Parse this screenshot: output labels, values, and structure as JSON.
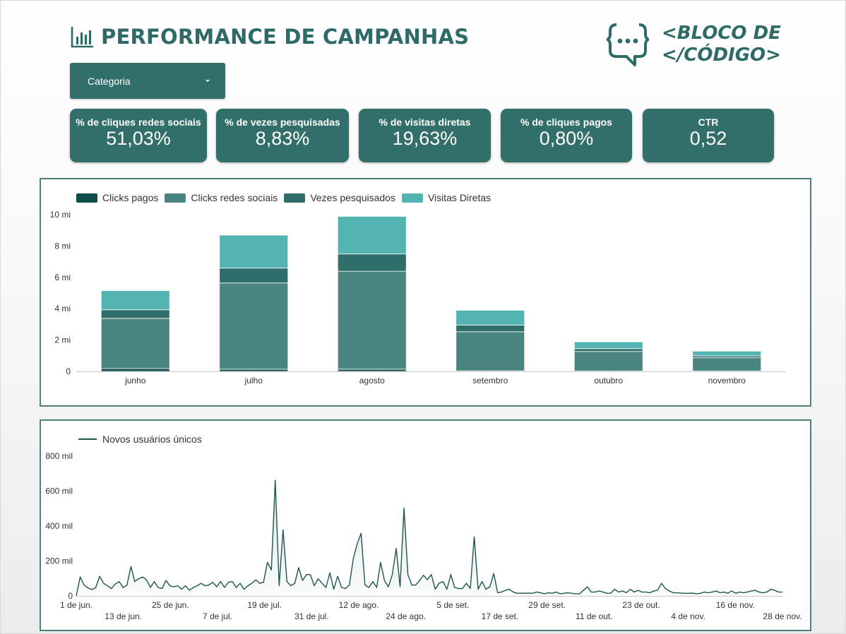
{
  "header": {
    "title": "PERFORMANCE DE CAMPANHAS",
    "icon": "bar-chart-icon",
    "logo_line1": "<BLOCO DE",
    "logo_line2": "</CÓDIGO>",
    "logo_icon": "chat-bubble-icon"
  },
  "filter": {
    "label": "Categoria",
    "icon": "caret-down-icon"
  },
  "kpis": [
    {
      "label": "% de cliques redes sociais",
      "value": "51,03%"
    },
    {
      "label": "% de vezes pesquisadas",
      "value": "8,83%"
    },
    {
      "label": "% de visitas diretas",
      "value": "19,63%"
    },
    {
      "label": "% de cliques pagos",
      "value": "0,80%"
    },
    {
      "label": "CTR",
      "value": "0,52"
    }
  ],
  "colors": {
    "primary": "#336f6a",
    "clicks_pagos": "#0f4e4a",
    "clicks_redes": "#4a8480",
    "vezes_pesquisados": "#2f6e6a",
    "visitas_diretas": "#53b4b1",
    "line": "#1e5550"
  },
  "chart_data": [
    {
      "type": "bar",
      "stacked": true,
      "categories": [
        "junho",
        "julho",
        "agosto",
        "setembro",
        "outubro",
        "novembro"
      ],
      "series": [
        {
          "name": "Clicks pagos",
          "values": [
            0.18,
            0.14,
            0.14,
            0.03,
            0.02,
            0.02
          ]
        },
        {
          "name": "Clicks redes sociais",
          "values": [
            3.2,
            5.5,
            6.25,
            2.5,
            1.25,
            0.85
          ]
        },
        {
          "name": "Vezes pesquisados",
          "values": [
            0.55,
            0.95,
            1.1,
            0.42,
            0.18,
            0.12
          ]
        },
        {
          "name": "Visitas Diretas",
          "values": [
            1.22,
            2.1,
            2.4,
            0.95,
            0.43,
            0.3
          ]
        }
      ],
      "yticks": [
        "0",
        "2 mi",
        "4 mi",
        "6 mi",
        "8 mi",
        "10 mi"
      ],
      "ylim": [
        0,
        10
      ],
      "legend": "top-left",
      "grid": false
    },
    {
      "type": "area",
      "series": [
        {
          "name": "Novos usuários únicos",
          "values": [
            0,
            108,
            62,
            45,
            36,
            48,
            112,
            72,
            58,
            42,
            68,
            82,
            48,
            62,
            168,
            82,
            98,
            108,
            92,
            48,
            82,
            48,
            42,
            88,
            58,
            52,
            58,
            38,
            58,
            32,
            48,
            58,
            72,
            58,
            62,
            78,
            52,
            82,
            48,
            78,
            82,
            48,
            72,
            38,
            58,
            72,
            92,
            72,
            78,
            192,
            148,
            662,
            58,
            378,
            82,
            58,
            72,
            162,
            88,
            122,
            122,
            58,
            98,
            72,
            48,
            132,
            38,
            112,
            48,
            42,
            62,
            212,
            298,
            358,
            62,
            48,
            82,
            48,
            192,
            88,
            52,
            122,
            272,
            52,
            502,
            122,
            62,
            62,
            88,
            118,
            92,
            122,
            38,
            72,
            82,
            38,
            122,
            48,
            42,
            42,
            72,
            42,
            338,
            38,
            82,
            38,
            52,
            128,
            18,
            22,
            32,
            38,
            22,
            15,
            16,
            15,
            16,
            15,
            22,
            18,
            12,
            18,
            15,
            22,
            12,
            15,
            18,
            15,
            12,
            12,
            32,
            52,
            22,
            22,
            28,
            22,
            15,
            15,
            38,
            22,
            28,
            18,
            38,
            22,
            32,
            22,
            22,
            18,
            28,
            32,
            72,
            42,
            28,
            18,
            18,
            16,
            15,
            15,
            16,
            12,
            15,
            22,
            18,
            22,
            28,
            18,
            22,
            15,
            28,
            15,
            22,
            18,
            22,
            28,
            32,
            22,
            18,
            22,
            38,
            32,
            22,
            22
          ]
        }
      ],
      "x_ticks_row1": [
        "1 de jun.",
        "25 de jun.",
        "19 de jul.",
        "12 de ago.",
        "5 de set.",
        "29 de set.",
        "23 de out.",
        "16 de nov."
      ],
      "x_ticks_row2": [
        "13 de jun.",
        "7 de jul.",
        "31 de jul.",
        "24 de ago.",
        "17 de set.",
        "11 de out.",
        "4 de nov.",
        "28 de nov."
      ],
      "yticks": [
        "0",
        "200 mil",
        "400 mil",
        "600 mil",
        "800 mil"
      ],
      "ylim": [
        0,
        800
      ],
      "legend": "top-left",
      "grid": false
    }
  ]
}
